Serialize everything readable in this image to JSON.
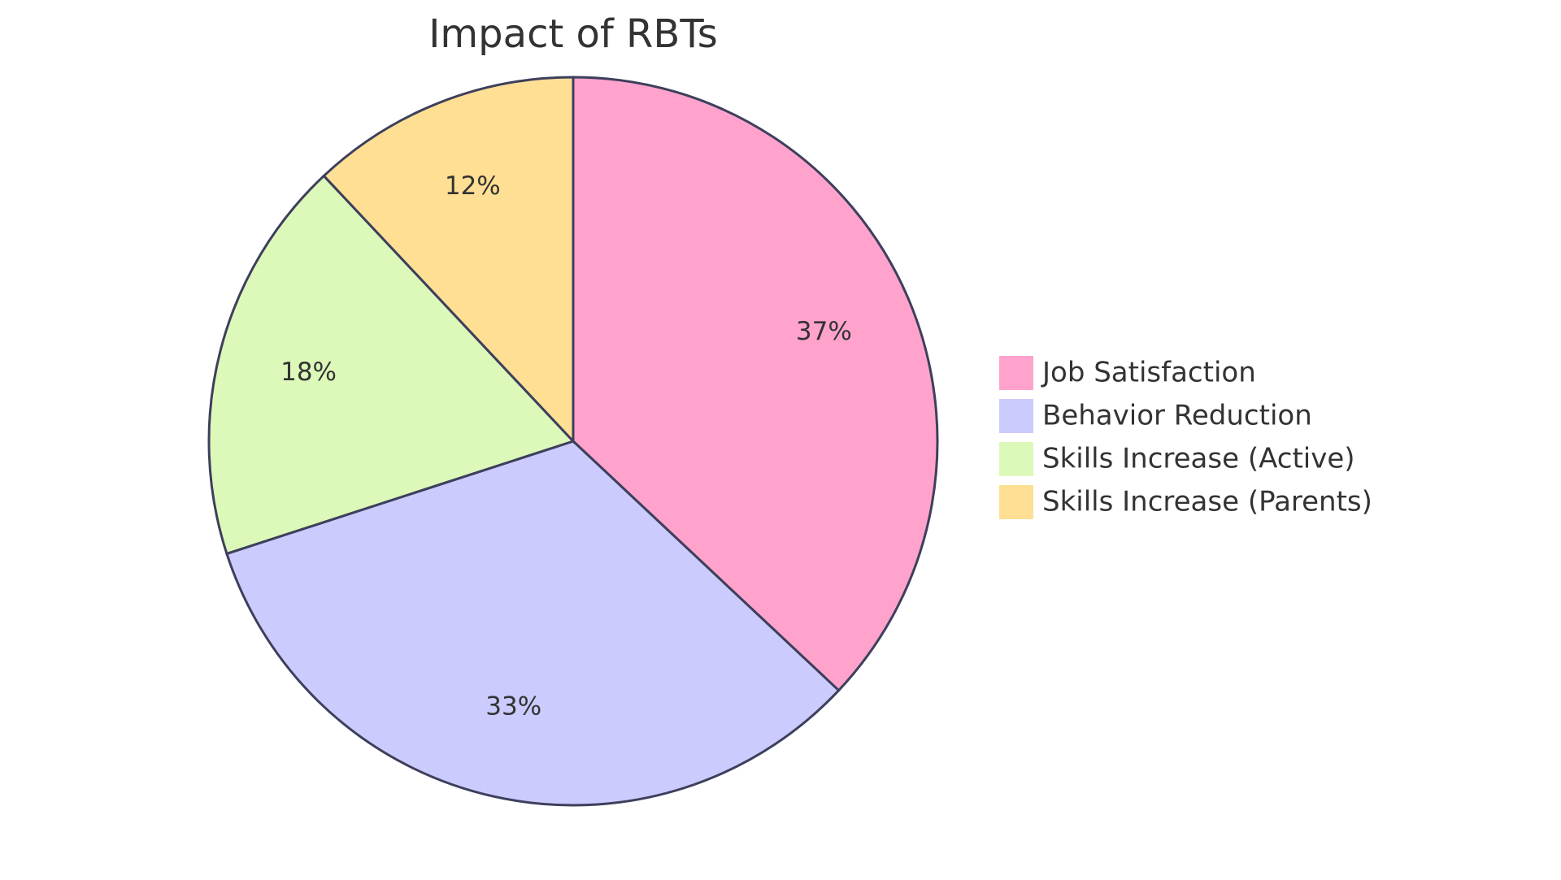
{
  "chart_data": {
    "type": "pie",
    "title": "Impact of RBTs",
    "legend_position": "right",
    "slices": [
      {
        "label": "Job Satisfaction",
        "value": 37,
        "display": "37%",
        "color": "#ffa3cd"
      },
      {
        "label": "Behavior Reduction",
        "value": 33,
        "display": "33%",
        "color": "#cbcbfd"
      },
      {
        "label": "Skills Increase (Active)",
        "value": 18,
        "display": "18%",
        "color": "#dcf9b9"
      },
      {
        "label": "Skills Increase (Parents)",
        "value": 12,
        "display": "12%",
        "color": "#ffdf94"
      }
    ]
  }
}
